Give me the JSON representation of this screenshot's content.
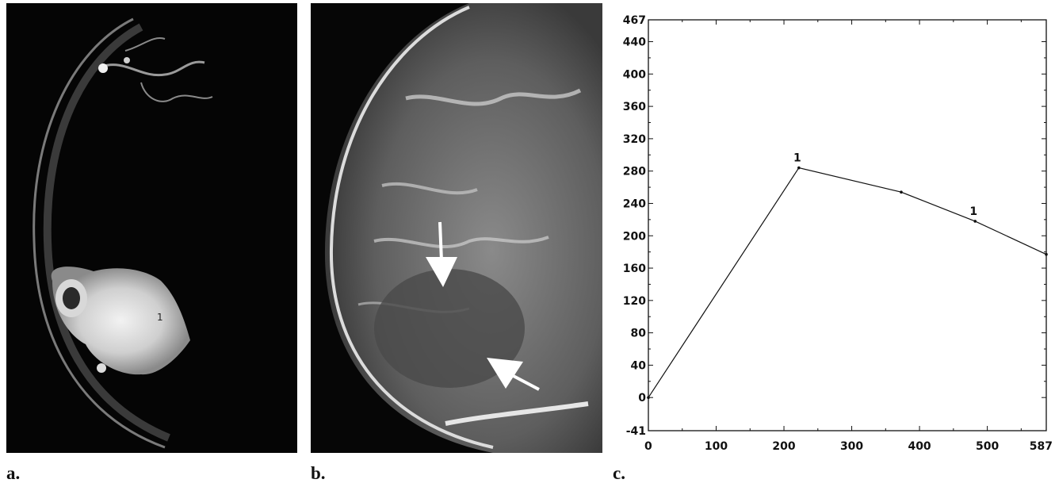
{
  "panels": {
    "a_letter": "a.",
    "b_letter": "b.",
    "c_letter": "c.",
    "a_overlay_text": "1",
    "colors": {
      "image_background": "#050505",
      "tissue": "#bdbdbd",
      "bright_lesion": "#e8e8e8",
      "arrow": "#ffffff"
    }
  },
  "chart_data": {
    "type": "line",
    "title": "",
    "xlabel": "",
    "ylabel": "",
    "xlim": [
      0,
      587
    ],
    "ylim": [
      -41,
      467
    ],
    "x_ticks": [
      "0",
      "100",
      "200",
      "300",
      "400",
      "500",
      "587"
    ],
    "y_ticks": [
      "-41",
      "0",
      "40",
      "80",
      "120",
      "160",
      "200",
      "240",
      "280",
      "320",
      "360",
      "400",
      "440",
      "467"
    ],
    "series": [
      {
        "x": [
          0,
          222,
          373,
          482,
          587
        ],
        "y": [
          0,
          284,
          254,
          218,
          177
        ]
      }
    ],
    "point_labels": [
      {
        "x": 222,
        "y": 284,
        "text": "1"
      },
      {
        "x": 482,
        "y": 218,
        "text": "1"
      }
    ],
    "grid": false,
    "line_color": "#111111"
  }
}
